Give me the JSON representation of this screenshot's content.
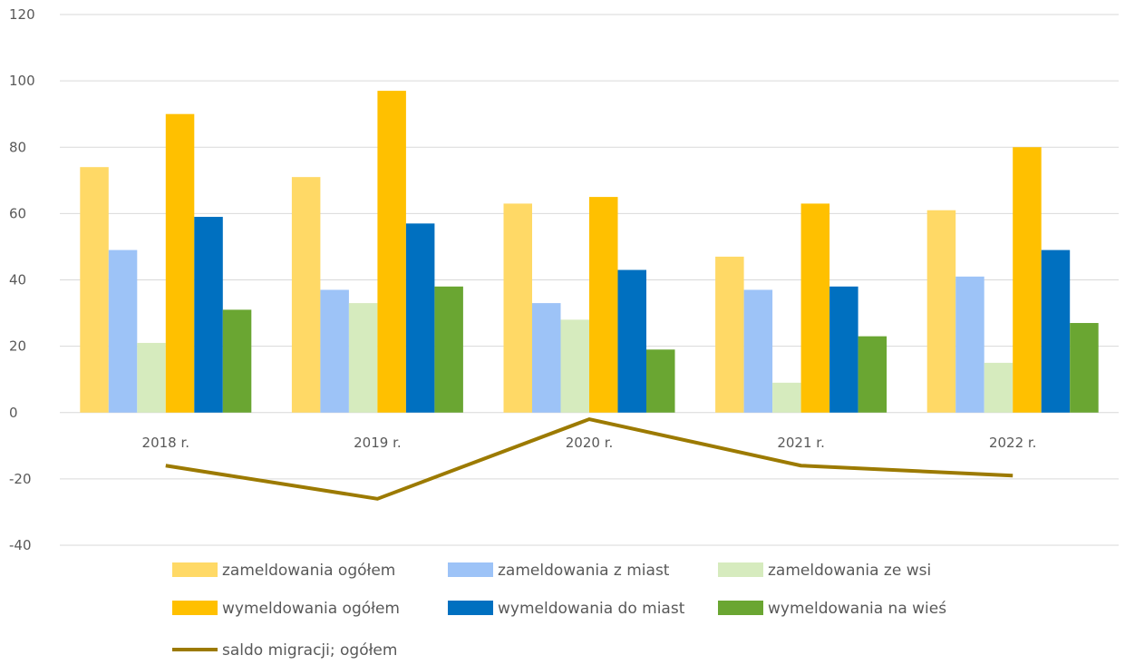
{
  "chart_data": {
    "type": "bar",
    "categories": [
      "2018 r.",
      "2019 r.",
      "2020 r.",
      "2021 r.",
      "2022 r."
    ],
    "series": [
      {
        "name": "zameldowania ogółem",
        "type": "bar",
        "color": "#FFD966",
        "values": [
          74,
          71,
          63,
          47,
          61
        ]
      },
      {
        "name": "zameldowania z miast",
        "type": "bar",
        "color": "#9DC3F7",
        "values": [
          49,
          37,
          33,
          37,
          41
        ]
      },
      {
        "name": "zameldowania ze wsi",
        "type": "bar",
        "color": "#D6EBBE",
        "values": [
          21,
          33,
          28,
          9,
          15
        ]
      },
      {
        "name": "wymeldowania ogółem",
        "type": "bar",
        "color": "#FFC000",
        "values": [
          90,
          97,
          65,
          63,
          80
        ]
      },
      {
        "name": "wymeldowania do miast",
        "type": "bar",
        "color": "#0070C0",
        "values": [
          59,
          57,
          43,
          38,
          49
        ]
      },
      {
        "name": "wymeldowania na wieś",
        "type": "bar",
        "color": "#6AA632",
        "values": [
          31,
          38,
          19,
          23,
          27
        ]
      },
      {
        "name": "saldo migracji; ogółem",
        "type": "line",
        "color": "#9C7A00",
        "values": [
          -16,
          -26,
          -2,
          -16,
          -19
        ]
      }
    ],
    "ylim": [
      -40,
      120
    ],
    "yticks": [
      "120",
      "100",
      "80",
      "60",
      "40",
      "20",
      "0",
      "-20",
      "-40"
    ],
    "ytick_values": [
      120,
      100,
      80,
      60,
      40,
      20,
      0,
      -20,
      -40
    ],
    "grid": true,
    "legend_position": "bottom"
  }
}
